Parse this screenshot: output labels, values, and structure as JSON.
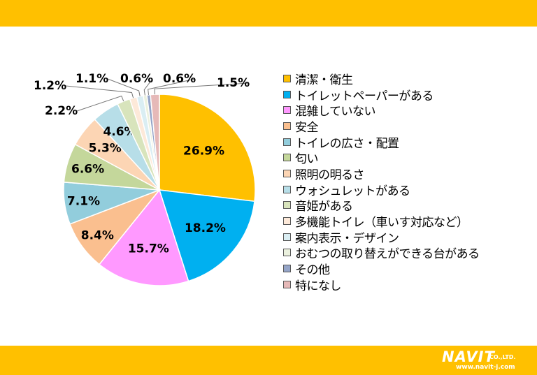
{
  "chart_data": {
    "type": "pie",
    "slices": [
      {
        "label": "清潔・衛生",
        "value": 26.9,
        "value_label": "26.9%",
        "color": "#FFC000"
      },
      {
        "label": "トイレットペーパーがある",
        "value": 18.2,
        "value_label": "18.2%",
        "color": "#00B0F0"
      },
      {
        "label": "混雑していない",
        "value": 15.7,
        "value_label": "15.7%",
        "color": "#FF99FF"
      },
      {
        "label": "安全",
        "value": 8.4,
        "value_label": "8.4%",
        "color": "#FABF8F"
      },
      {
        "label": "トイレの広さ・配置",
        "value": 7.1,
        "value_label": "7.1%",
        "color": "#92CDDC"
      },
      {
        "label": "匂い",
        "value": 6.6,
        "value_label": "6.6%",
        "color": "#C4D79B"
      },
      {
        "label": "照明の明るさ",
        "value": 5.3,
        "value_label": "5.3%",
        "color": "#FCD5B4"
      },
      {
        "label": "ウォシュレットがある",
        "value": 4.6,
        "value_label": "4.6%",
        "color": "#B7DEE8"
      },
      {
        "label": "音姫がある",
        "value": 2.2,
        "value_label": "2.2%",
        "color": "#D8E4BC"
      },
      {
        "label": "多機能トイレ（車いす対応など）",
        "value": 1.2,
        "value_label": "1.2%",
        "color": "#FDE9D9"
      },
      {
        "label": "案内表示・デザイン",
        "value": 1.1,
        "value_label": "1.1%",
        "color": "#DAEEF3"
      },
      {
        "label": "おむつの取り替えができる台がある",
        "value": 0.6,
        "value_label": "0.6%",
        "color": "#EBF1DE"
      },
      {
        "label": "その他",
        "value": 0.6,
        "value_label": "0.6%",
        "color": "#95A5C8"
      },
      {
        "label": "特になし",
        "value": 1.5,
        "value_label": "1.5%",
        "color": "#E6B9B8"
      }
    ],
    "legend_position": "right",
    "start_angle": "12 o'clock",
    "direction": "clockwise"
  },
  "branding": {
    "logo_text": "NAVIT",
    "logo_suffix": "CO.,LTD.",
    "url": "www.navit-j.com",
    "band_color": "#FFC000"
  }
}
